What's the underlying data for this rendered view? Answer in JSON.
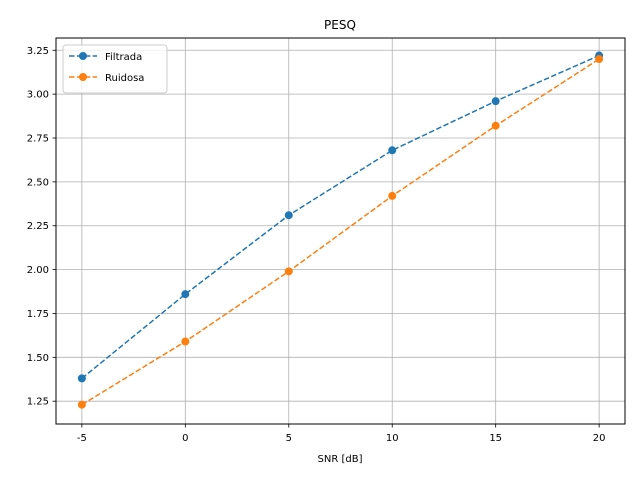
{
  "chart_data": {
    "type": "line",
    "title": "PESQ",
    "xlabel": "SNR [dB]",
    "ylabel": "",
    "x": [
      -5,
      0,
      5,
      10,
      15,
      20
    ],
    "x_tick_labels": [
      "-5",
      "0",
      "5",
      "10",
      "15",
      "20"
    ],
    "y_ticks": [
      1.25,
      1.5,
      1.75,
      2.0,
      2.25,
      2.5,
      2.75,
      3.0,
      3.25
    ],
    "y_tick_labels": [
      "1.25",
      "1.50",
      "1.75",
      "2.00",
      "2.25",
      "2.50",
      "2.75",
      "3.00",
      "3.25"
    ],
    "xlim": [
      -6.25,
      21.25
    ],
    "ylim": [
      1.12,
      3.32
    ],
    "grid": true,
    "legend_position": "upper-left",
    "series": [
      {
        "name": "Filtrada",
        "color": "#1f77b4",
        "line_style": "dashed",
        "marker": "circle",
        "values": [
          1.38,
          1.86,
          2.31,
          2.68,
          2.96,
          3.22
        ]
      },
      {
        "name": "Ruidosa",
        "color": "#ff7f0e",
        "line_style": "dashed",
        "marker": "circle",
        "values": [
          1.23,
          1.59,
          1.99,
          2.42,
          2.82,
          3.2
        ]
      }
    ]
  }
}
